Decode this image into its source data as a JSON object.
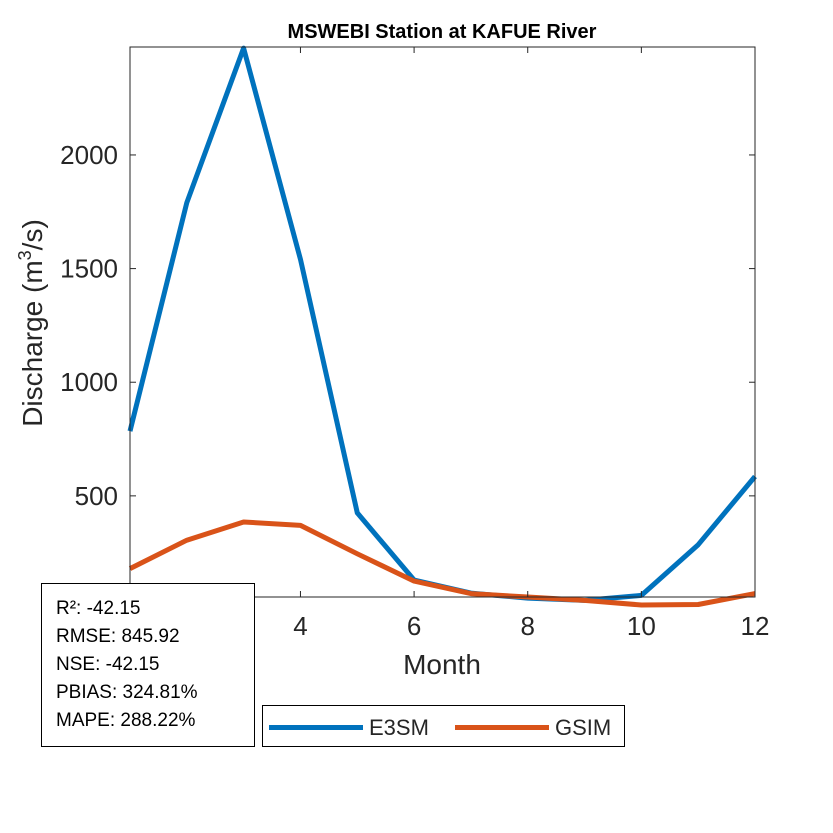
{
  "chart_data": {
    "type": "line",
    "title": "MSWEBI  Station at  KAFUE  River",
    "xlabel": "Month",
    "ylabel": "Discharge (m³/s)",
    "ylabel_parts": {
      "prefix": "Discharge (m",
      "superscript": "3",
      "suffix": "/s)"
    },
    "x": [
      1,
      2,
      3,
      4,
      5,
      6,
      7,
      8,
      9,
      10,
      11,
      12
    ],
    "xlim": [
      1,
      12
    ],
    "ylim": [
      55,
      2475
    ],
    "xticks": [
      4,
      6,
      8,
      10,
      12
    ],
    "yticks": [
      500,
      1000,
      1500,
      2000
    ],
    "grid": false,
    "legend_position": "bottom",
    "series": [
      {
        "name": "E3SM",
        "color": "#0072BD",
        "values": [
          785,
          1790,
          2470,
          1540,
          425,
          130,
          72,
          50,
          40,
          62,
          285,
          585
        ]
      },
      {
        "name": "GSIM",
        "color": "#D95319",
        "values": [
          180,
          305,
          385,
          370,
          245,
          125,
          70,
          55,
          40,
          20,
          22,
          70
        ]
      }
    ]
  },
  "stats": {
    "r2": "R²: -42.15",
    "rmse": "RMSE: 845.92",
    "nse": "NSE: -42.15",
    "pbias": "PBIAS: 324.81%",
    "mape": "MAPE: 288.22%"
  },
  "legend": {
    "e3sm": "E3SM",
    "gsim": "GSIM"
  }
}
